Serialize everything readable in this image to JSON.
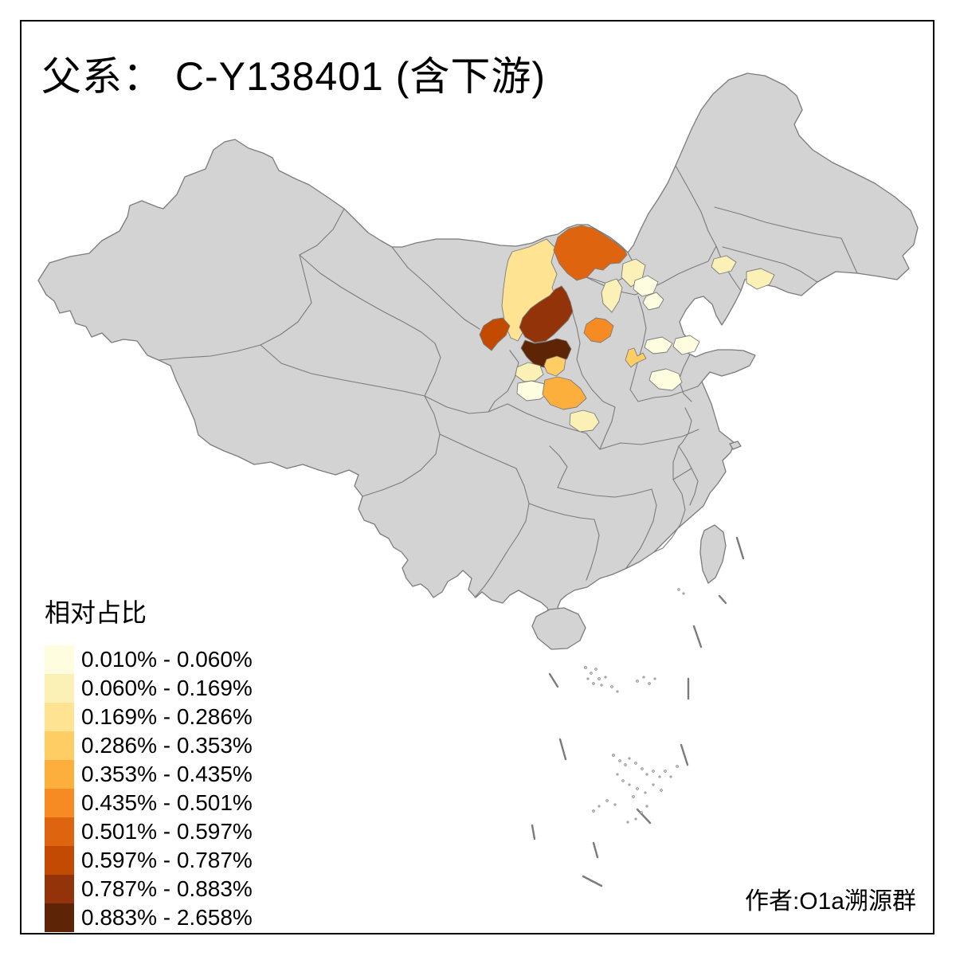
{
  "title": "父系： C-Y138401 (含下游)",
  "attribution": "作者:O1a溯源群",
  "legend": {
    "title": "相对占比",
    "classes": [
      {
        "label": "0.010% - 0.060%",
        "color": "#FFFDE0"
      },
      {
        "label": "0.060% - 0.169%",
        "color": "#FBF0B5"
      },
      {
        "label": "0.169% - 0.286%",
        "color": "#FEE392"
      },
      {
        "label": "0.286% - 0.353%",
        "color": "#FECE65"
      },
      {
        "label": "0.353% - 0.435%",
        "color": "#FDAF3D"
      },
      {
        "label": "0.435% - 0.501%",
        "color": "#F68A23"
      },
      {
        "label": "0.501% - 0.597%",
        "color": "#DE640F"
      },
      {
        "label": "0.597% - 0.787%",
        "color": "#C24A03"
      },
      {
        "label": "0.787% - 0.883%",
        "color": "#93330A"
      },
      {
        "label": "0.883% - 2.658%",
        "color": "#5E2406"
      }
    ]
  },
  "map": {
    "base_fill": "#d3d3d3",
    "border_color": "#7b7b7b",
    "background": "#ffffff",
    "regions": [
      {
        "id": "r1",
        "cls": 7
      },
      {
        "id": "r2",
        "cls": 3
      },
      {
        "id": "r3",
        "cls": 9
      },
      {
        "id": "r4",
        "cls": 10
      },
      {
        "id": "r5",
        "cls": 8
      },
      {
        "id": "r6",
        "cls": 6
      },
      {
        "id": "r7",
        "cls": 4
      },
      {
        "id": "r8",
        "cls": 2
      },
      {
        "id": "r9",
        "cls": 1
      },
      {
        "id": "r10",
        "cls": 5
      },
      {
        "id": "r11",
        "cls": 2
      },
      {
        "id": "r12",
        "cls": 4
      },
      {
        "id": "r13",
        "cls": 1
      },
      {
        "id": "r14",
        "cls": 1
      },
      {
        "id": "r15",
        "cls": 1
      },
      {
        "id": "r16",
        "cls": 2
      },
      {
        "id": "r17",
        "cls": 2
      },
      {
        "id": "r18",
        "cls": 2
      },
      {
        "id": "r19",
        "cls": 1
      },
      {
        "id": "r20",
        "cls": 1
      },
      {
        "id": "r21",
        "cls": 2
      }
    ]
  }
}
